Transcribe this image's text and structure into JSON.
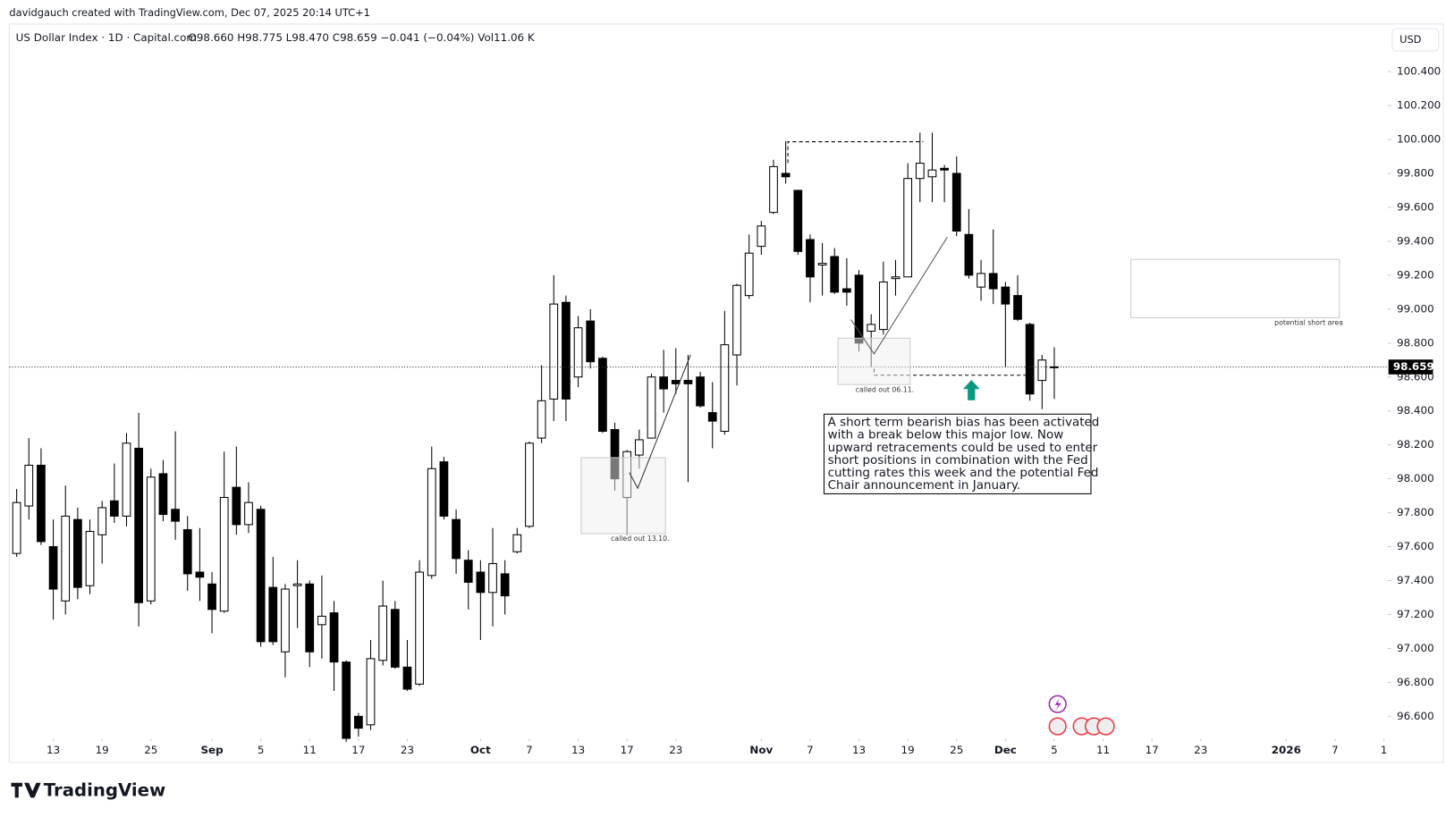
{
  "header": {
    "credit": "davidgauch created with TradingView.com, Dec 07, 2025 20:14 UTC+1",
    "symbol": "US Dollar Index · 1D · Capital.com",
    "ohlc": "O98.660 H98.775 L98.470 C98.659 −0.041 (−0.04%) Vol11.06 K",
    "currency": "USD"
  },
  "chart_data": {
    "type": "candlestick",
    "open": [
      97.56,
      97.84,
      98.08,
      97.6,
      97.28,
      97.76,
      97.37,
      97.67,
      97.87,
      97.78,
      98.18,
      97.28,
      98.03,
      97.82,
      97.7,
      97.45,
      97.38,
      97.22,
      97.95,
      97.73,
      97.82,
      97.36,
      96.98,
      97.37,
      97.38,
      97.14,
      97.21,
      96.92,
      96.6,
      96.55,
      96.93,
      97.23,
      96.89,
      96.79,
      97.43,
      98.1,
      97.76,
      97.52,
      97.45,
      97.33,
      97.44,
      97.57,
      97.72,
      98.24,
      98.47,
      99.04,
      98.6,
      98.93,
      98.71,
      98.29,
      97.89,
      98.14,
      98.24,
      98.6,
      98.58,
      98.58,
      98.6,
      98.39,
      98.28,
      98.73,
      99.08,
      99.37,
      99.57,
      99.8,
      99.7,
      99.41,
      99.26,
      99.31,
      99.12,
      99.2,
      98.87,
      98.88,
      99.18,
      99.19,
      99.77,
      99.78,
      99.83,
      99.8,
      99.44,
      99.13,
      99.21,
      99.13,
      99.08,
      98.91,
      98.58,
      98.66
    ],
    "high": [
      97.94,
      98.24,
      98.18,
      97.76,
      97.96,
      97.83,
      97.76,
      97.87,
      98.09,
      98.27,
      98.39,
      98.06,
      98.11,
      98.28,
      97.78,
      97.71,
      97.45,
      98.16,
      98.19,
      97.98,
      97.84,
      97.54,
      97.38,
      97.52,
      97.4,
      97.43,
      97.28,
      96.93,
      96.62,
      97.05,
      97.4,
      97.28,
      97.05,
      97.52,
      98.19,
      98.13,
      97.82,
      97.58,
      97.52,
      97.71,
      97.52,
      97.71,
      98.22,
      98.67,
      99.2,
      99.08,
      98.96,
      99.0,
      98.72,
      98.33,
      98.17,
      98.29,
      98.62,
      98.76,
      98.77,
      98.73,
      98.63,
      98.57,
      98.99,
      99.15,
      99.44,
      99.52,
      99.88,
      99.99,
      99.7,
      99.44,
      99.39,
      99.36,
      99.3,
      99.23,
      98.97,
      99.28,
      99.29,
      99.86,
      100.04,
      100.04,
      99.85,
      99.9,
      99.59,
      99.29,
      99.47,
      99.16,
      99.2,
      98.92,
      98.73,
      98.775
    ],
    "low": [
      97.54,
      97.76,
      97.61,
      97.17,
      97.2,
      97.29,
      97.32,
      97.5,
      97.74,
      97.72,
      97.13,
      97.26,
      97.75,
      97.64,
      97.34,
      97.28,
      97.09,
      97.21,
      97.67,
      97.68,
      97.01,
      97.02,
      96.83,
      97.12,
      96.89,
      96.94,
      96.75,
      96.45,
      96.48,
      96.52,
      96.9,
      96.88,
      96.75,
      96.78,
      97.41,
      97.76,
      97.44,
      97.23,
      97.05,
      97.13,
      97.2,
      97.56,
      97.71,
      98.21,
      98.34,
      98.34,
      98.54,
      98.65,
      98.27,
      97.93,
      97.67,
      98.06,
      98.24,
      98.39,
      98.5,
      97.98,
      98.42,
      98.18,
      98.26,
      98.55,
      99.06,
      99.32,
      99.56,
      99.74,
      99.32,
      99.04,
      99.08,
      99.09,
      99.02,
      98.75,
      98.66,
      98.85,
      99.08,
      99.19,
      99.63,
      99.63,
      99.63,
      99.43,
      99.18,
      99.05,
      99.03,
      98.66,
      98.93,
      98.46,
      98.41,
      98.47
    ],
    "close": [
      97.86,
      98.08,
      97.63,
      97.35,
      97.78,
      97.36,
      97.69,
      97.83,
      97.78,
      98.21,
      97.27,
      98.01,
      97.79,
      97.75,
      97.44,
      97.42,
      97.23,
      97.89,
      97.73,
      97.86,
      97.04,
      97.04,
      97.35,
      97.38,
      96.98,
      97.19,
      96.92,
      96.47,
      96.53,
      96.94,
      97.25,
      96.89,
      96.76,
      97.45,
      98.06,
      97.78,
      97.53,
      97.39,
      97.33,
      97.5,
      97.31,
      97.67,
      98.21,
      98.46,
      99.03,
      98.47,
      98.89,
      98.69,
      98.28,
      98.0,
      98.16,
      98.23,
      98.6,
      98.53,
      98.56,
      98.56,
      98.43,
      98.34,
      98.79,
      99.14,
      99.33,
      99.49,
      99.84,
      99.78,
      99.34,
      99.19,
      99.27,
      99.1,
      99.1,
      98.8,
      98.91,
      99.16,
      99.19,
      99.77,
      99.86,
      99.82,
      99.82,
      99.46,
      99.2,
      99.21,
      99.12,
      99.03,
      98.94,
      98.5,
      98.7,
      98.659
    ],
    "up_color": "#ffffff",
    "down_color": "#000000",
    "edge_color": "#000000",
    "last_price": 98.659,
    "ylim": [
      96.47,
      100.68
    ],
    "yticks": [
      {
        "value": 100.4,
        "label": "100.400"
      },
      {
        "value": 100.2,
        "label": "100.200"
      },
      {
        "value": 100.0,
        "label": "100.000"
      },
      {
        "value": 99.8,
        "label": "99.800"
      },
      {
        "value": 99.6,
        "label": "99.600"
      },
      {
        "value": 99.4,
        "label": "99.400"
      },
      {
        "value": 99.2,
        "label": "99.200"
      },
      {
        "value": 99.0,
        "label": "99.000"
      },
      {
        "value": 98.8,
        "label": "98.800"
      },
      {
        "value": 98.6,
        "label": "98.600"
      },
      {
        "value": 98.4,
        "label": "98.400"
      },
      {
        "value": 98.2,
        "label": "98.200"
      },
      {
        "value": 98.0,
        "label": "98.000"
      },
      {
        "value": 97.8,
        "label": "97.800"
      },
      {
        "value": 97.6,
        "label": "97.600"
      },
      {
        "value": 97.4,
        "label": "97.400"
      },
      {
        "value": 97.2,
        "label": "97.200"
      },
      {
        "value": 97.0,
        "label": "97.000"
      },
      {
        "value": 96.8,
        "label": "96.800"
      },
      {
        "value": 96.6,
        "label": "96.600"
      }
    ],
    "xlim": [
      -0.6,
      112.3
    ],
    "xticks": [
      {
        "value": 3,
        "label": "13"
      },
      {
        "value": 7,
        "label": "19"
      },
      {
        "value": 11,
        "label": "25"
      },
      {
        "value": 16,
        "label": "Sep"
      },
      {
        "value": 20,
        "label": "5"
      },
      {
        "value": 24,
        "label": "11"
      },
      {
        "value": 28,
        "label": "17"
      },
      {
        "value": 32,
        "label": "23"
      },
      {
        "value": 38,
        "label": "Oct"
      },
      {
        "value": 42,
        "label": "7"
      },
      {
        "value": 46,
        "label": "13"
      },
      {
        "value": 50,
        "label": "17"
      },
      {
        "value": 54,
        "label": "23"
      },
      {
        "value": 61,
        "label": "Nov"
      },
      {
        "value": 65,
        "label": "7"
      },
      {
        "value": 69,
        "label": "13"
      },
      {
        "value": 73,
        "label": "19"
      },
      {
        "value": 77,
        "label": "25"
      },
      {
        "value": 81,
        "label": "Dec"
      },
      {
        "value": 85,
        "label": "5"
      },
      {
        "value": 89,
        "label": "11"
      },
      {
        "value": 93,
        "label": "17"
      },
      {
        "value": 97,
        "label": "23"
      },
      {
        "value": 104,
        "label": "2026"
      },
      {
        "value": 108,
        "label": "7"
      },
      {
        "value": 112,
        "label": "1"
      }
    ],
    "annotations": {
      "called_1": "called out 13.10.",
      "called_2": "called out 06.11.",
      "short_area": "potential short area",
      "note": [
        "A short term bearish bias has been activated",
        "with a break below this major low. Now",
        "upward retracements could be used to enter",
        "short positions in combination with the Fed",
        "cutting rates this week and the potential Fed",
        "Chair announcement in January."
      ]
    }
  },
  "footer": {
    "logo": "TradingView"
  }
}
